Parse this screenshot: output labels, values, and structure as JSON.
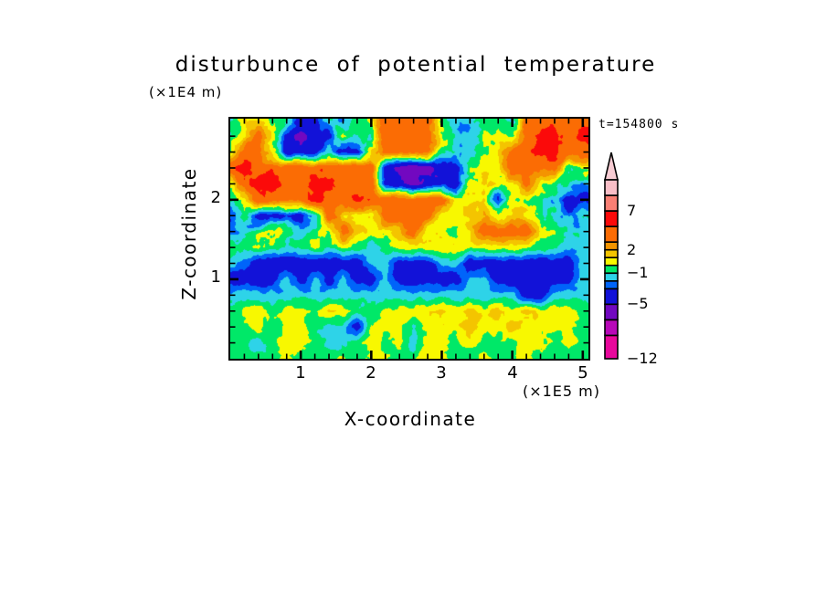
{
  "title": "disturbunce of potential temperature",
  "annotation": "t=154800 s",
  "x_axis": {
    "title": "X-coordinate",
    "unit": "(×1E5 m)",
    "ticks": [
      "1",
      "2",
      "3",
      "4",
      "5"
    ]
  },
  "y_axis": {
    "title": "Z-coordinate",
    "unit": "(×1E4 m)",
    "ticks": [
      "1",
      "2"
    ]
  },
  "colorbar": {
    "labels": [
      {
        "text": "7",
        "level": 7
      },
      {
        "text": "2",
        "level": 2
      },
      {
        "text": "−1",
        "level": -1
      },
      {
        "text": "−5",
        "level": -5
      },
      {
        "text": "−12",
        "level": -12
      }
    ],
    "levels": [
      -12,
      -9,
      -7,
      -5,
      -3,
      -2,
      -1,
      0,
      1,
      2,
      3,
      5,
      7,
      9,
      11
    ],
    "colors_bottom_to_top": [
      "#e8089c",
      "#b808b8",
      "#7208c0",
      "#1212d8",
      "#0064fa",
      "#2ed3e8",
      "#00e868",
      "#f8f800",
      "#f4c400",
      "#f49400",
      "#fb6c04",
      "#fb0a0a",
      "#f97f74",
      "#f9bec7"
    ],
    "arrow_color": "#f7ccd3"
  },
  "chart_data": {
    "type": "heatmap",
    "subtype": "filled-contour",
    "title": "disturbunce of potential temperature",
    "xlabel": "X-coordinate",
    "x_unit": "×1E5 m",
    "ylabel": "Z-coordinate",
    "y_unit": "×1E4 m",
    "time_label": "t=154800 s",
    "x_range": [
      0,
      5.08
    ],
    "z_range": [
      0,
      3.02
    ],
    "x_major_ticks": [
      1,
      2,
      3,
      4,
      5
    ],
    "z_major_ticks": [
      1,
      2
    ],
    "minor_tick_step": 0.2,
    "levels": [
      -12,
      -9,
      -7,
      -5,
      -3,
      -2,
      -1,
      0,
      1,
      2,
      3,
      5,
      7,
      9,
      11
    ],
    "grid": {
      "x0": 0,
      "dx": 0.2,
      "nx": 26,
      "ztop": 3.0,
      "dz": 0.2,
      "nz": 16,
      "values_top_to_bottom": [
        [
          -0.5,
          0.5,
          0.5,
          -0.5,
          -0.5,
          -4,
          -4,
          -0.5,
          -2.5,
          -0.5,
          0.5,
          4,
          4,
          4,
          4,
          -0.5,
          -1.5,
          -1.5,
          -0.5,
          -0.5,
          -1.5,
          4,
          4,
          4,
          4,
          4
        ],
        [
          -0.5,
          0.5,
          4,
          0.5,
          -4,
          -6,
          -4,
          -4,
          0.5,
          -0.5,
          -0.5,
          4,
          4,
          4,
          4,
          0.5,
          -1.5,
          -1.5,
          -0.5,
          0.5,
          -0.5,
          4,
          6,
          6,
          4,
          6
        ],
        [
          0.5,
          4,
          4,
          0.5,
          -4,
          -4,
          -4,
          -1.5,
          -4,
          -4,
          0.5,
          4,
          4,
          4,
          4,
          -0.5,
          -1.5,
          -1.5,
          -0.5,
          0.5,
          4,
          4,
          6,
          6,
          4,
          4
        ],
        [
          4,
          6,
          4,
          4,
          4,
          4,
          4,
          4,
          4,
          4,
          4,
          -4,
          -6,
          -6,
          -6,
          -4,
          -4,
          -0.5,
          0.5,
          0.5,
          4,
          4,
          4,
          4,
          -0.5,
          0.5
        ],
        [
          0.5,
          4,
          6,
          6,
          4,
          4,
          6,
          6,
          4,
          4,
          4,
          -4,
          -4,
          -6,
          -4,
          -4,
          -4,
          0.5,
          1.5,
          0.5,
          0.5,
          4,
          0.5,
          -0.5,
          -1.5,
          -1.5
        ],
        [
          -0.5,
          0.5,
          4,
          4,
          4,
          4,
          6,
          4,
          4,
          6,
          4,
          4,
          4,
          4,
          4,
          4,
          0.5,
          0.5,
          0.5,
          -4,
          0.5,
          0.5,
          -0.5,
          -1.5,
          -4,
          -4
        ],
        [
          -2.5,
          -0.5,
          -4,
          -4,
          -2.5,
          -4,
          -1.5,
          4,
          1.5,
          0.5,
          0.5,
          4,
          4,
          4,
          4,
          0.5,
          0.5,
          1.5,
          1.5,
          0.5,
          1.5,
          0.5,
          -0.5,
          -1.5,
          -2.5,
          -1.5
        ],
        [
          -2.5,
          -1.5,
          -0.5,
          0.5,
          -0.5,
          -1.5,
          -0.5,
          0.5,
          4,
          1.5,
          0.5,
          0.5,
          1.5,
          4,
          0.5,
          0.5,
          -0.5,
          0.5,
          4,
          4,
          4,
          4,
          0.5,
          -0.5,
          -1.5,
          -1.5
        ],
        [
          -0.5,
          -0.5,
          0.5,
          -0.5,
          -1.5,
          -0.5,
          0.5,
          -1.5,
          0.5,
          -0.5,
          -1.5,
          -0.5,
          0.5,
          0.5,
          0.5,
          0.5,
          0.5,
          0.5,
          0.5,
          0.5,
          0.5,
          0.5,
          -0.5,
          -0.5,
          -1.5,
          -1.5
        ],
        [
          -1.5,
          -2.5,
          -4,
          -4,
          -4,
          -4,
          -4,
          -4,
          -4,
          -4,
          -1.5,
          -1.5,
          -4,
          -4,
          -4,
          -1.5,
          -1.5,
          -4,
          -4,
          -4,
          -4,
          -4,
          -4,
          -4,
          -4,
          -1.5
        ],
        [
          -4,
          -4,
          -4,
          -4,
          -1.5,
          -4,
          -1.5,
          -4,
          -1.5,
          -4,
          -4,
          -1.5,
          -4,
          -4,
          -4,
          -4,
          -4,
          -1.5,
          -1.5,
          -4,
          -4,
          -4,
          -4,
          -4,
          -4,
          -1.5
        ],
        [
          -1.5,
          -1.5,
          -1.5,
          -1.5,
          -1.5,
          -1.5,
          -1.5,
          -1.5,
          -1.5,
          -1.5,
          -1.5,
          -1.5,
          -1.5,
          -1.5,
          -1.5,
          -1.5,
          -1.5,
          -1.5,
          -1.5,
          -1.5,
          -1.5,
          -4,
          -4,
          -1.5,
          -1.5,
          -1.5
        ],
        [
          -0.5,
          0.5,
          0.5,
          -0.5,
          0.5,
          0.5,
          -0.5,
          1.5,
          0.5,
          -0.5,
          -0.5,
          0.5,
          0.5,
          0.5,
          0.5,
          1.5,
          0.5,
          1.5,
          0.5,
          1.5,
          0.5,
          1.5,
          0.5,
          0.5,
          0.5,
          -0.5
        ],
        [
          -0.5,
          -0.5,
          0.5,
          -0.5,
          0.5,
          0.5,
          -0.5,
          -1.5,
          -1.5,
          -4,
          0.5,
          0.5,
          0.5,
          -1.5,
          0.5,
          0.5,
          0.5,
          1.5,
          0.5,
          0.5,
          1.5,
          0.5,
          0.5,
          0.5,
          0.5,
          -0.5
        ],
        [
          -0.5,
          -0.5,
          -1.5,
          -0.5,
          0.5,
          0.5,
          -0.5,
          -1.5,
          -1.5,
          -0.5,
          0.5,
          -0.5,
          0.5,
          -1.5,
          0.5,
          0.5,
          -0.5,
          0.5,
          -0.5,
          -0.5,
          -0.5,
          0.5,
          0.5,
          -0.5,
          0.5,
          -0.5
        ],
        [
          -0.5,
          -0.5,
          -0.5,
          -0.5,
          0.5,
          -0.5,
          -0.5,
          -0.5,
          0.5,
          -0.5,
          0.5,
          0.5,
          -0.5,
          -0.5,
          0.5,
          0.5,
          -0.5,
          -0.5,
          0.5,
          -0.5,
          -0.5,
          0.5,
          -0.5,
          -0.5,
          -0.5,
          -0.5
        ]
      ]
    }
  }
}
